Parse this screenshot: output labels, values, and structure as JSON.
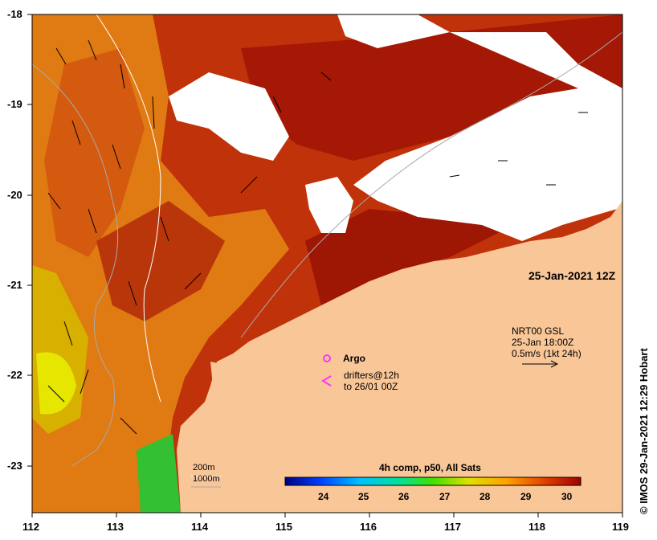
{
  "map": {
    "timestamp": "25-Jan-2021 12Z",
    "velocity_key": {
      "line1": "NRT00 GSL",
      "line2": "25-Jan 18:00Z",
      "line3": "0.5m/s (1kt 24h)"
    },
    "legend": {
      "argo": "Argo",
      "drifters_line1": "drifters@12h",
      "drifters_line2": "to 26/01 00Z",
      "argo_color": "#ff33ff",
      "drifter_color": "#ff33ff"
    },
    "isobaths": {
      "a": "200m",
      "b": "1000m"
    },
    "colorbar": {
      "title": "4h comp, p50, All Sats",
      "ticks": [
        "24",
        "25",
        "26",
        "27",
        "28",
        "29",
        "30"
      ]
    },
    "lat_ticks": [
      "-18",
      "-19",
      "-20",
      "-21",
      "-22",
      "-23"
    ],
    "lon_ticks": [
      "112",
      "113",
      "114",
      "115",
      "116",
      "117",
      "118",
      "119"
    ],
    "credit": "© IMOS 29-Jan-2021 12:29 Hobart",
    "colors": {
      "land": "#f9c698",
      "cloud": "#ffffff",
      "warm": "#c8320a",
      "hot": "#a51a05",
      "mid": "#e88a10",
      "cool": "#d4e000",
      "green": "#33cc33"
    }
  }
}
